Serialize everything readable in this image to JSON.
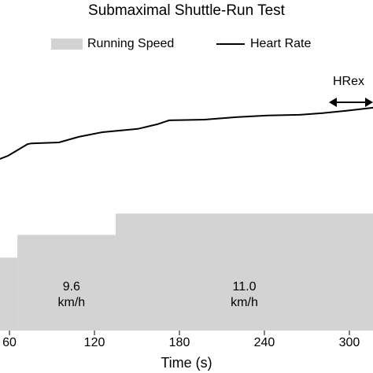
{
  "chart_data": {
    "type": "line",
    "title": "Submaximal Shuttle-Run Test",
    "x_label": "Time (s)",
    "xlim": [
      53.3,
      316.7
    ],
    "xticks": [
      60,
      120,
      180,
      240,
      300
    ],
    "ylim": [
      60,
      200
    ],
    "y2lim": [
      3.3,
      20.4
    ],
    "series": [
      {
        "name": "Running Speed",
        "kind": "step-area",
        "axis": "y2",
        "color": "#d3d3d3",
        "bins": [
          53.3,
          65.6,
          135,
          316.7
        ],
        "values": [
          8.1,
          9.6,
          11.0
        ],
        "value_labels": [
          null,
          [
            "9.6",
            "km/h"
          ],
          [
            "11.0",
            "km/h"
          ]
        ]
      },
      {
        "name": "Heart Rate",
        "kind": "line",
        "color": "#000000",
        "x": [
          53.3,
          58.9,
          64.4,
          72.8,
          75.6,
          95.0,
          108.9,
          125.6,
          150.6,
          164.4,
          172.8,
          197.8,
          220,
          242.2,
          264.4,
          281.1,
          297.8,
          316.7
        ],
        "values": [
          152.5,
          154.2,
          156.7,
          160.5,
          160.9,
          161.4,
          164.4,
          166.9,
          168.7,
          171.2,
          173.3,
          173.7,
          175.0,
          175.9,
          176.3,
          177.2,
          178.5,
          180.1
        ]
      }
    ],
    "annotation": "HRex"
  }
}
